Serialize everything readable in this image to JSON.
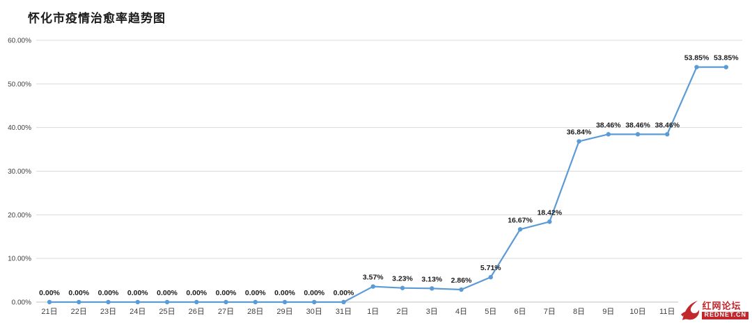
{
  "chart": {
    "title": "怀化市疫情治愈率趋势图"
  },
  "chart_data": {
    "type": "line",
    "title": "怀化市疫情治愈率趋势图",
    "categories": [
      "21日",
      "22日",
      "23日",
      "24日",
      "25日",
      "26日",
      "27日",
      "28日",
      "29日",
      "30日",
      "31日",
      "1日",
      "2日",
      "3日",
      "4日",
      "5日",
      "6日",
      "7日",
      "8日",
      "9日",
      "10日",
      "11日",
      "",
      ""
    ],
    "values": [
      0,
      0,
      0,
      0,
      0,
      0,
      0,
      0,
      0,
      0,
      0,
      3.57,
      3.23,
      3.13,
      2.86,
      5.71,
      16.67,
      18.42,
      36.84,
      38.46,
      38.46,
      38.46,
      53.85,
      53.85
    ],
    "point_labels": [
      "0.00%",
      "0.00%",
      "0.00%",
      "0.00%",
      "0.00%",
      "0.00%",
      "0.00%",
      "0.00%",
      "0.00%",
      "0.00%",
      "0.00%",
      "3.57%",
      "3.23%",
      "3.13%",
      "2.86%",
      "5.71%",
      "16.67%",
      "18.42%",
      "36.84%",
      "38.46%",
      "38.46%",
      "38.46%",
      "53.85%",
      "53.85%"
    ],
    "y_ticks": [
      "0.00%",
      "10.00%",
      "20.00%",
      "30.00%",
      "40.00%",
      "50.00%",
      "60.00%"
    ],
    "ylim": [
      0,
      60
    ],
    "xlabel": "",
    "ylabel": "",
    "grid": "horizontal",
    "legend": "none",
    "colors": {
      "line": "#5b9bd5",
      "grid": "#d9d9d9",
      "axis": "#bfbfbf",
      "label": "#1a1a1a",
      "tick": "#404040"
    }
  },
  "watermark": {
    "site_name": "红网论坛",
    "domain": "REDNET.CN",
    "color": "#c1272d"
  }
}
